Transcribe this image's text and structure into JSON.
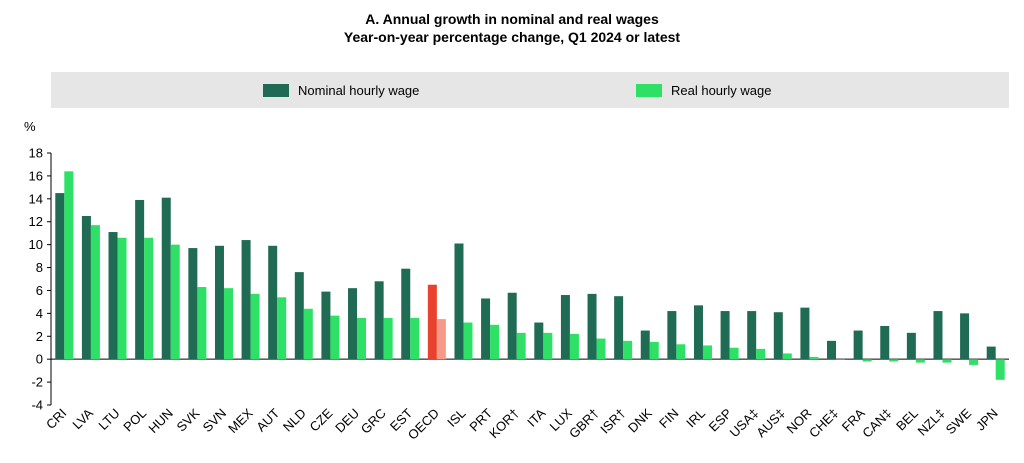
{
  "chart_data": {
    "type": "bar",
    "title": "A. Annual growth in nominal and real wages",
    "subtitle": "Year-on-year percentage change, Q1 2024 or latest",
    "ylabel": "%",
    "xlabel": "",
    "ylim": [
      -4,
      18
    ],
    "yticks": [
      -4,
      -2,
      0,
      2,
      4,
      6,
      8,
      10,
      12,
      14,
      16,
      18
    ],
    "grid": false,
    "legend_position": "top",
    "categories": [
      "CRI",
      "LVA",
      "LTU",
      "POL",
      "HUN",
      "SVK",
      "SVN",
      "MEX",
      "AUT",
      "NLD",
      "CZE",
      "DEU",
      "GRC",
      "EST",
      "OECD",
      "ISL",
      "PRT",
      "KOR†",
      "ITA",
      "LUX",
      "GBR†",
      "ISR†",
      "DNK",
      "FIN",
      "IRL",
      "ESP",
      "USA‡",
      "AUS‡",
      "NOR",
      "CHE‡",
      "FRA",
      "CAN‡",
      "BEL",
      "NZL‡",
      "SWE",
      "JPN"
    ],
    "highlight_category": "OECD",
    "series": [
      {
        "name": "Nominal hourly wage",
        "color": "#1f6b53",
        "highlight_color": "#e8412d",
        "values": [
          14.5,
          12.5,
          11.1,
          13.9,
          14.1,
          9.7,
          9.9,
          10.4,
          9.9,
          7.6,
          5.9,
          6.2,
          6.8,
          7.9,
          6.5,
          10.1,
          5.3,
          5.8,
          3.2,
          5.6,
          5.7,
          5.5,
          2.5,
          4.2,
          4.7,
          4.2,
          4.2,
          4.1,
          4.5,
          1.6,
          2.5,
          2.9,
          2.3,
          4.2,
          4.0,
          1.1
        ]
      },
      {
        "name": "Real hourly wage",
        "color": "#2ee065",
        "highlight_color": "#f59a88",
        "values": [
          16.4,
          11.7,
          10.6,
          10.6,
          10.0,
          6.3,
          6.2,
          5.7,
          5.4,
          4.4,
          3.8,
          3.6,
          3.6,
          3.6,
          3.5,
          3.2,
          3.0,
          2.3,
          2.3,
          2.2,
          1.8,
          1.6,
          1.5,
          1.3,
          1.2,
          1.0,
          0.9,
          0.5,
          0.2,
          0.0,
          -0.2,
          -0.2,
          -0.3,
          -0.3,
          -0.5,
          -1.8
        ]
      }
    ]
  }
}
